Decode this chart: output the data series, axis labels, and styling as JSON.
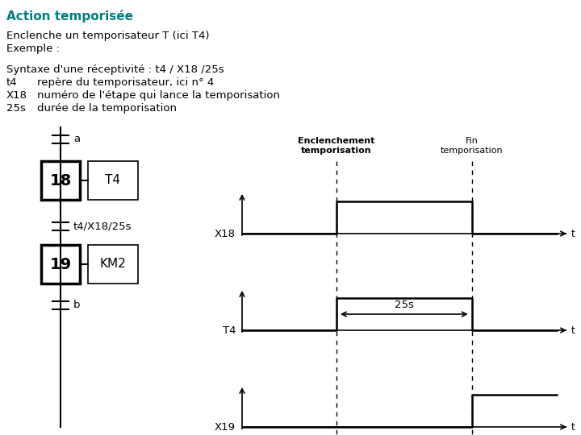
{
  "title": "Action temporisée",
  "title_color": "#008080",
  "bg_color": "#ffffff",
  "line1": "Enclenche un temporisateur T (ici T4)",
  "line2": "Exemple :",
  "line3": "Syntaxe d'une réceptivité : t4 / X18 /25s",
  "line4a": "t4",
  "line4b": "repère du temporisateur, ici n° 4",
  "line5a": "X18",
  "line5b": "numéro de l'étape qui lance la temporisation",
  "line6a": "25s",
  "line6b": "durée de la temporisation",
  "text_fontsize": 9.5,
  "title_fontsize": 11,
  "t_enc": 0.3,
  "t_fin": 0.73,
  "label_enc": "Enclenchement\ntemporisation",
  "label_fin": "Fin\ntemporisation",
  "label_25s": "25s",
  "label_t": "t"
}
